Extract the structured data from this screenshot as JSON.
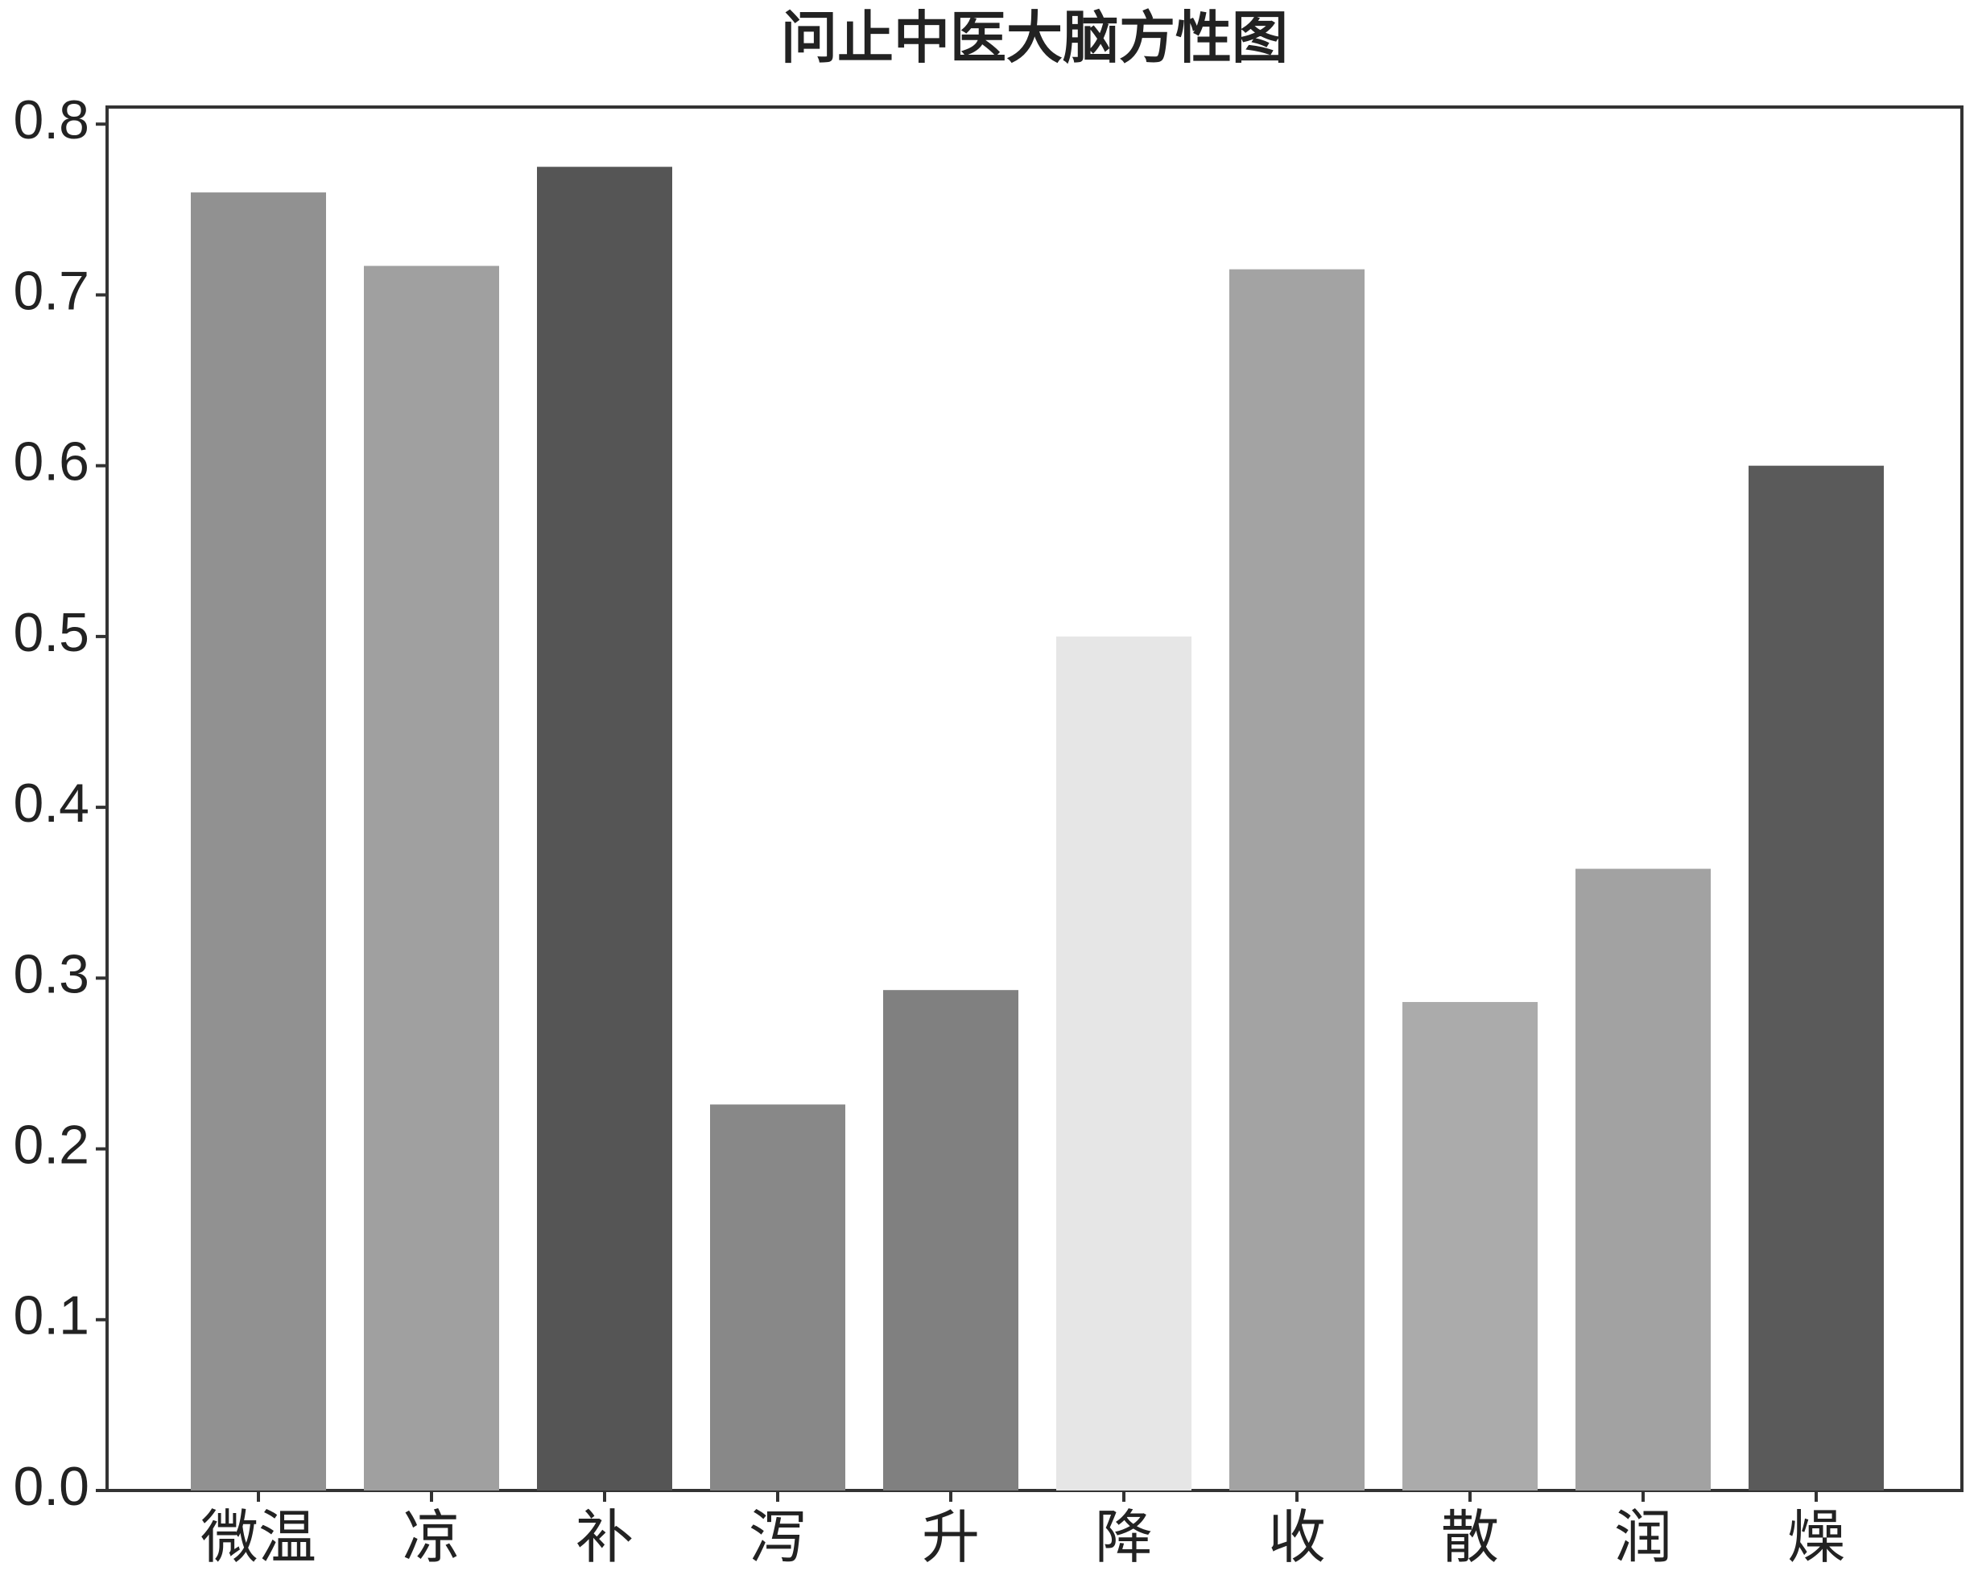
{
  "chart_data": {
    "type": "bar",
    "title": "问止中医大脑方性图",
    "categories": [
      "微温",
      "凉",
      "补",
      "泻",
      "升",
      "降",
      "收",
      "散",
      "润",
      "燥"
    ],
    "values": [
      0.76,
      0.717,
      0.775,
      0.226,
      0.293,
      0.5,
      0.715,
      0.286,
      0.364,
      0.6
    ],
    "colors": [
      "#919191",
      "#a0a0a0",
      "#555555",
      "#888888",
      "#808080",
      "#e6e6e6",
      "#a3a3a3",
      "#ababab",
      "#a2a2a2",
      "#5a5a5a"
    ],
    "ylim": [
      0,
      0.81
    ],
    "yticks": [
      {
        "value": 0,
        "label": "0.0"
      },
      0.1,
      0.2,
      0.3,
      0.4,
      0.5,
      0.6,
      0.7,
      0.8
    ],
    "grid": false
  }
}
